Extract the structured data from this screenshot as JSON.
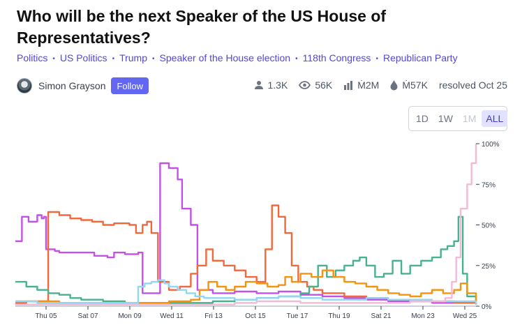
{
  "market": {
    "title": "Who will be the next Speaker of the US House of Representatives?",
    "tags": [
      "Politics",
      "US Politics",
      "Trump",
      "Speaker of the House election",
      "118th Congress",
      "Republican Party"
    ],
    "author": "Simon Grayson",
    "follow_label": "Follow"
  },
  "stats": {
    "traders": "1.3K",
    "views": "56K",
    "volume": "Ṁ2M",
    "liquidity": "Ṁ57K",
    "resolved": "resolved Oct 25"
  },
  "range": {
    "options": [
      "1D",
      "1W",
      "1M",
      "ALL"
    ],
    "selected": "ALL",
    "disabled": [
      "1M"
    ]
  },
  "chart_data": {
    "type": "line",
    "x_ticks": [
      "Thu 05",
      "Sat 07",
      "Mon 09",
      "Wed 11",
      "Fri 13",
      "Oct 15",
      "Tue 17",
      "Thu 19",
      "Sat 21",
      "Mon 23",
      "Wed 25"
    ],
    "y_ticks": [
      "0%",
      "25%",
      "50%",
      "75%",
      "100%"
    ],
    "ylim": [
      0,
      100
    ],
    "xlim": [
      0,
      21
    ],
    "series": [
      {
        "color": "#c351e6",
        "points": [
          [
            0,
            40
          ],
          [
            0.3,
            55
          ],
          [
            0.6,
            52
          ],
          [
            1.0,
            56
          ],
          [
            1.2,
            54
          ],
          [
            1.3,
            55
          ],
          [
            1.4,
            35
          ],
          [
            1.8,
            34
          ],
          [
            2.0,
            33
          ],
          [
            3.0,
            33
          ],
          [
            3.6,
            31
          ],
          [
            4.2,
            30
          ],
          [
            4.5,
            33
          ],
          [
            5.0,
            32
          ],
          [
            5.4,
            32
          ],
          [
            5.6,
            33
          ],
          [
            5.8,
            8
          ],
          [
            6.2,
            8
          ],
          [
            6.6,
            88
          ],
          [
            7.0,
            85
          ],
          [
            7.4,
            78
          ],
          [
            7.6,
            60
          ],
          [
            8.0,
            50
          ],
          [
            8.3,
            10
          ],
          [
            9.0,
            8
          ],
          [
            10.0,
            9
          ],
          [
            11.0,
            8
          ],
          [
            12.0,
            9
          ],
          [
            13.0,
            7
          ],
          [
            14.0,
            6
          ],
          [
            15.0,
            5
          ],
          [
            16.0,
            4
          ],
          [
            17.0,
            3
          ],
          [
            18.0,
            3
          ],
          [
            19.0,
            2
          ],
          [
            20.0,
            2
          ],
          [
            21.0,
            1
          ]
        ]
      },
      {
        "color": "#f0683c",
        "points": [
          [
            0,
            2
          ],
          [
            0.5,
            3
          ],
          [
            1.0,
            3
          ],
          [
            1.5,
            58
          ],
          [
            2.0,
            56
          ],
          [
            2.5,
            54
          ],
          [
            3.0,
            53
          ],
          [
            3.5,
            52
          ],
          [
            4.0,
            50
          ],
          [
            4.5,
            51
          ],
          [
            5.2,
            50
          ],
          [
            5.5,
            45
          ],
          [
            5.8,
            50
          ],
          [
            6.0,
            52
          ],
          [
            6.2,
            45
          ],
          [
            6.5,
            15
          ],
          [
            7.0,
            10
          ],
          [
            7.5,
            12
          ],
          [
            8.0,
            20
          ],
          [
            8.3,
            25
          ],
          [
            8.7,
            35
          ],
          [
            9.0,
            28
          ],
          [
            9.5,
            25
          ],
          [
            10.0,
            22
          ],
          [
            10.5,
            18
          ],
          [
            11.0,
            15
          ],
          [
            11.4,
            35
          ],
          [
            11.7,
            62
          ],
          [
            12.0,
            55
          ],
          [
            12.3,
            45
          ],
          [
            12.6,
            25
          ],
          [
            12.9,
            15
          ],
          [
            13.3,
            12
          ],
          [
            13.6,
            10
          ],
          [
            14.0,
            8
          ],
          [
            15.0,
            6
          ],
          [
            16.0,
            5
          ],
          [
            17.0,
            4
          ],
          [
            18.0,
            3
          ],
          [
            19.0,
            3
          ],
          [
            20.0,
            2
          ],
          [
            21.0,
            1
          ]
        ]
      },
      {
        "color": "#48b190",
        "points": [
          [
            0,
            15
          ],
          [
            0.5,
            12
          ],
          [
            1.0,
            10
          ],
          [
            1.5,
            8
          ],
          [
            2.0,
            7
          ],
          [
            2.5,
            5
          ],
          [
            3.0,
            4
          ],
          [
            4.0,
            3
          ],
          [
            5.0,
            2
          ],
          [
            6.0,
            2
          ],
          [
            7.0,
            2
          ],
          [
            8.0,
            2
          ],
          [
            9.0,
            3
          ],
          [
            10.0,
            4
          ],
          [
            11.0,
            5
          ],
          [
            12.0,
            6
          ],
          [
            13.0,
            8
          ],
          [
            13.4,
            12
          ],
          [
            13.8,
            25
          ],
          [
            14.2,
            18
          ],
          [
            14.6,
            22
          ],
          [
            15.0,
            25
          ],
          [
            15.4,
            28
          ],
          [
            15.7,
            30
          ],
          [
            16.0,
            25
          ],
          [
            16.4,
            18
          ],
          [
            16.8,
            20
          ],
          [
            17.2,
            28
          ],
          [
            17.6,
            20
          ],
          [
            18.0,
            25
          ],
          [
            18.5,
            28
          ],
          [
            19.0,
            30
          ],
          [
            19.4,
            35
          ],
          [
            19.7,
            37
          ],
          [
            20.0,
            40
          ],
          [
            20.2,
            55
          ],
          [
            20.4,
            20
          ],
          [
            20.6,
            6
          ],
          [
            21.0,
            2
          ]
        ]
      },
      {
        "color": "#f5930d",
        "points": [
          [
            0,
            3
          ],
          [
            1.0,
            3
          ],
          [
            2.0,
            2
          ],
          [
            3.0,
            2
          ],
          [
            4.0,
            2
          ],
          [
            5.0,
            2
          ],
          [
            6.0,
            2
          ],
          [
            7.0,
            3
          ],
          [
            8.0,
            4
          ],
          [
            8.4,
            10
          ],
          [
            8.8,
            15
          ],
          [
            9.2,
            12
          ],
          [
            9.6,
            10
          ],
          [
            10.0,
            12
          ],
          [
            10.5,
            15
          ],
          [
            11.0,
            14
          ],
          [
            11.5,
            12
          ],
          [
            12.0,
            13
          ],
          [
            12.3,
            18
          ],
          [
            12.6,
            15
          ],
          [
            13.0,
            20
          ],
          [
            13.5,
            18
          ],
          [
            14.0,
            22
          ],
          [
            14.5,
            18
          ],
          [
            15.0,
            15
          ],
          [
            15.5,
            14
          ],
          [
            16.0,
            12
          ],
          [
            16.5,
            10
          ],
          [
            17.0,
            8
          ],
          [
            17.5,
            7
          ],
          [
            18.0,
            6
          ],
          [
            18.5,
            8
          ],
          [
            19.0,
            10
          ],
          [
            19.5,
            8
          ],
          [
            20.0,
            10
          ],
          [
            20.3,
            14
          ],
          [
            20.6,
            8
          ],
          [
            21.0,
            3
          ]
        ]
      },
      {
        "color": "#93d6f2",
        "points": [
          [
            0,
            3
          ],
          [
            1.0,
            2
          ],
          [
            2.0,
            2
          ],
          [
            3.0,
            2
          ],
          [
            4.0,
            2
          ],
          [
            5.0,
            2
          ],
          [
            5.6,
            12
          ],
          [
            5.9,
            14
          ],
          [
            6.2,
            15
          ],
          [
            6.5,
            16
          ],
          [
            6.8,
            14
          ],
          [
            7.0,
            12
          ],
          [
            7.4,
            10
          ],
          [
            7.8,
            8
          ],
          [
            8.2,
            6
          ],
          [
            8.6,
            5
          ],
          [
            9.0,
            5
          ],
          [
            10.0,
            4
          ],
          [
            11.0,
            5
          ],
          [
            12.0,
            6
          ],
          [
            13.0,
            5
          ],
          [
            14.0,
            4
          ],
          [
            15.0,
            4
          ],
          [
            16.0,
            5
          ],
          [
            17.0,
            4
          ],
          [
            18.0,
            4
          ],
          [
            19.0,
            3
          ],
          [
            20.0,
            3
          ],
          [
            21.0,
            1
          ]
        ]
      },
      {
        "color": "#f3bad6",
        "points": [
          [
            0,
            1
          ],
          [
            2.0,
            1
          ],
          [
            4.0,
            1
          ],
          [
            6.0,
            1
          ],
          [
            8.0,
            1
          ],
          [
            10.0,
            2
          ],
          [
            11.0,
            3
          ],
          [
            12.0,
            3
          ],
          [
            13.0,
            2
          ],
          [
            14.0,
            2
          ],
          [
            15.0,
            2
          ],
          [
            16.0,
            2
          ],
          [
            17.0,
            2
          ],
          [
            18.0,
            3
          ],
          [
            19.0,
            3
          ],
          [
            19.6,
            5
          ],
          [
            19.9,
            15
          ],
          [
            20.1,
            30
          ],
          [
            20.3,
            60
          ],
          [
            20.6,
            75
          ],
          [
            20.8,
            88
          ],
          [
            21.0,
            100
          ]
        ]
      }
    ]
  }
}
